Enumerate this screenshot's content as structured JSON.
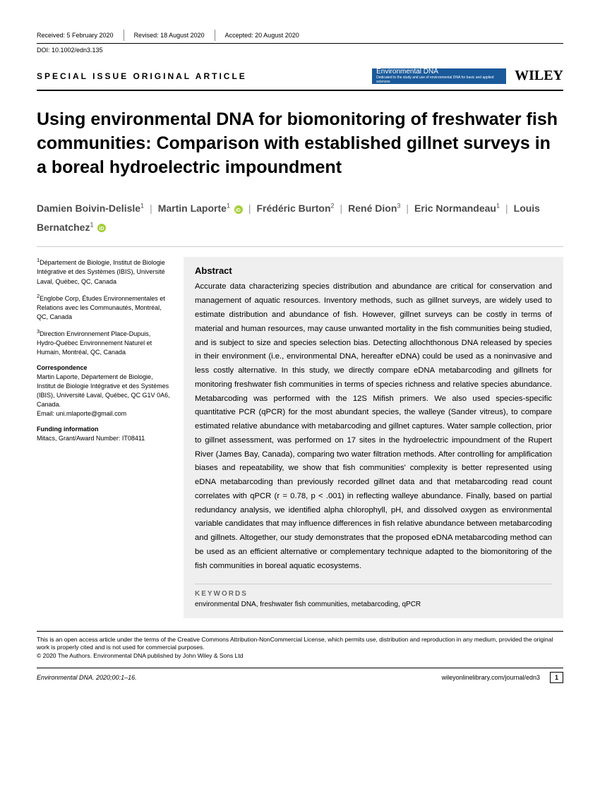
{
  "header": {
    "received": "Received: 5 February 2020",
    "revised": "Revised: 18 August 2020",
    "accepted": "Accepted: 20 August 2020",
    "doi": "DOI: 10.1002/edn3.135"
  },
  "article_type": "SPECIAL ISSUE ORIGINAL ARTICLE",
  "journal_badge": {
    "name": "Environmental DNA",
    "subtitle": "Dedicated to the study and use of environmental DNA for basic and applied sciences"
  },
  "publisher_logo": "WILEY",
  "title": "Using environmental DNA for biomonitoring of freshwater fish communities: Comparison with established gillnet surveys in a boreal hydroelectric impoundment",
  "authors": [
    {
      "name": "Damien Boivin-Delisle",
      "sup": "1",
      "orcid": false
    },
    {
      "name": "Martin Laporte",
      "sup": "1",
      "orcid": true
    },
    {
      "name": "Frédéric Burton",
      "sup": "2",
      "orcid": false
    },
    {
      "name": "René Dion",
      "sup": "3",
      "orcid": false
    },
    {
      "name": "Eric Normandeau",
      "sup": "1",
      "orcid": false
    },
    {
      "name": "Louis Bernatchez",
      "sup": "1",
      "orcid": true
    }
  ],
  "affiliations": [
    {
      "sup": "1",
      "text": "Département de Biologie, Institut de Biologie Intégrative et des Systèmes (IBIS), Université Laval, Québec, QC, Canada"
    },
    {
      "sup": "2",
      "text": "Englobe Corp, Études Environnementales et Relations avec les Communautés, Montréal, QC, Canada"
    },
    {
      "sup": "3",
      "text": "Direction Environnement Place-Dupuis, Hydro-Québec Environnement Naturel et Humain, Montréal, QC, Canada"
    }
  ],
  "correspondence": {
    "head": "Correspondence",
    "text": "Martin Laporte, Département de Biologie, Institut de Biologie Intégrative et des Systèmes (IBIS), Université Laval, Québec, QC G1V 0A6, Canada.",
    "email": "Email: uni.mlaporte@gmail.com"
  },
  "funding": {
    "head": "Funding information",
    "text": "Mitacs, Grant/Award Number: IT08411"
  },
  "abstract": {
    "head": "Abstract",
    "text": "Accurate data characterizing species distribution and abundance are critical for conservation and management of aquatic resources. Inventory methods, such as gillnet surveys, are widely used to estimate distribution and abundance of fish. However, gillnet surveys can be costly in terms of material and human resources, may cause unwanted mortality in the fish communities being studied, and is subject to size and species selection bias. Detecting allochthonous DNA released by species in their environment (i.e., environmental DNA, hereafter eDNA) could be used as a noninvasive and less costly alternative. In this study, we directly compare eDNA metabarcoding and gillnets for monitoring freshwater fish communities in terms of species richness and relative species abundance. Metabarcoding was performed with the 12S Mifish primers. We also used species-specific quantitative PCR (qPCR) for the most abundant species, the walleye (Sander vitreus), to compare estimated relative abundance with metabarcoding and gillnet captures. Water sample collection, prior to gillnet assessment, was performed on 17 sites in the hydroelectric impoundment of the Rupert River (James Bay, Canada), comparing two water filtration methods. After controlling for amplification biases and repeatability, we show that fish communities' complexity is better represented using eDNA metabarcoding than previously recorded gillnet data and that metabarcoding read count correlates with qPCR (r = 0.78, p < .001) in reflecting walleye abundance. Finally, based on partial redundancy analysis, we identified alpha chlorophyll, pH, and dissolved oxygen as environmental variable candidates that may influence differences in fish relative abundance between metabarcoding and gillnets. Altogether, our study demonstrates that the proposed eDNA metabarcoding method can be used as an efficient alternative or complementary technique adapted to the biomonitoring of the fish communities in boreal aquatic ecosystems."
  },
  "keywords": {
    "head": "KEYWORDS",
    "text": "environmental DNA, freshwater fish communities, metabarcoding, qPCR"
  },
  "license": {
    "line1": "This is an open access article under the terms of the Creative Commons Attribution-NonCommercial License, which permits use, distribution and reproduction in any medium, provided the original work is properly cited and is not used for commercial purposes.",
    "line2": "© 2020 The Authors. Environmental DNA published by John Wiley & Sons Ltd"
  },
  "footer": {
    "citation": "Environmental DNA. 2020;00:1–16.",
    "url": "wileyonlinelibrary.com/journal/edn3",
    "page": "1"
  },
  "colors": {
    "badge_bg": "#1a5a9a",
    "abstract_bg": "#efefef",
    "orcid": "#a6ce39",
    "author_text": "#4a4a4a"
  }
}
